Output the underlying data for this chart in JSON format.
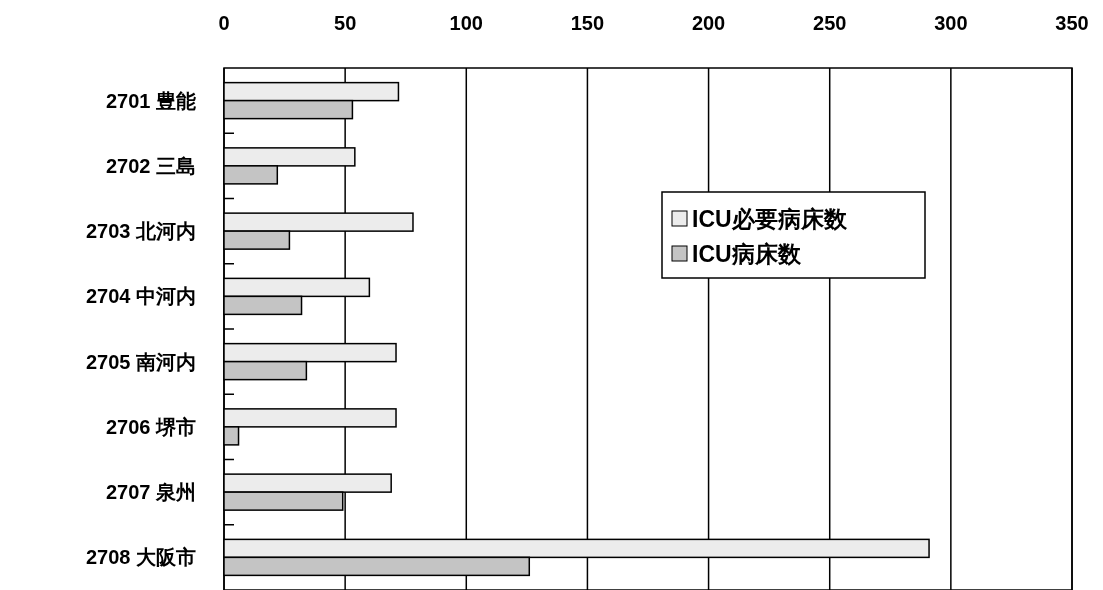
{
  "chart_data": {
    "type": "bar",
    "orientation": "horizontal",
    "categories": [
      "2701  豊能",
      "2702  三島",
      "2703  北河内",
      "2704  中河内",
      "2705  南河内",
      "2706  堺市",
      "2707  泉州",
      "2708  大阪市"
    ],
    "series": [
      {
        "name": "ICU必要病床数",
        "color": "#ececec",
        "values": [
          72,
          54,
          78,
          60,
          71,
          71,
          69,
          291
        ]
      },
      {
        "name": "ICU病床数",
        "color": "#c4c4c4",
        "values": [
          53,
          22,
          27,
          32,
          34,
          6,
          49,
          126
        ]
      }
    ],
    "xlim": [
      0,
      350
    ],
    "xticks": [
      0,
      50,
      100,
      150,
      200,
      250,
      300,
      350
    ],
    "grid": "x",
    "legend": "right"
  }
}
